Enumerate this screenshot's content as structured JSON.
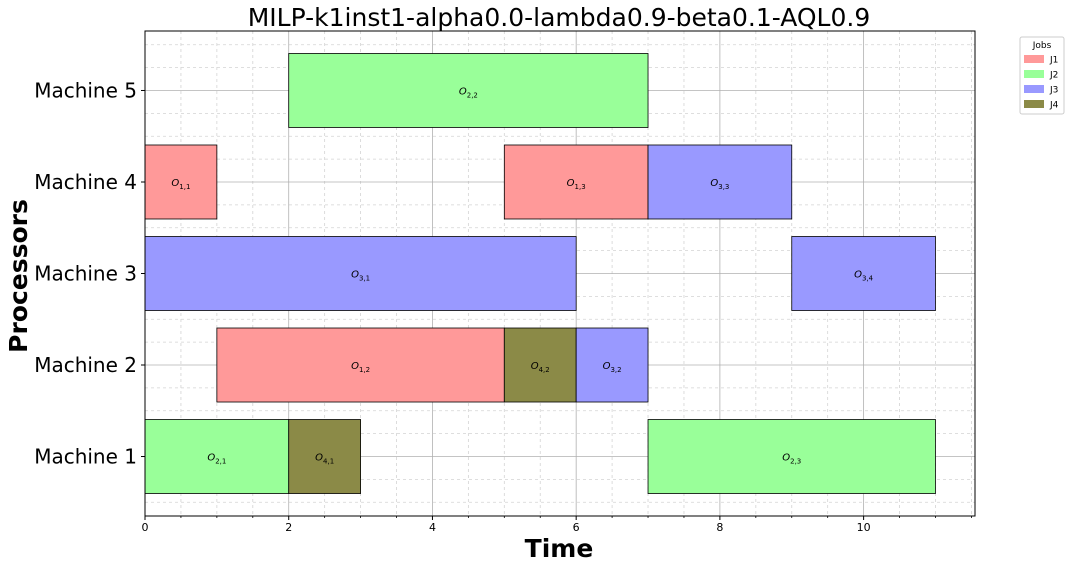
{
  "chart_data": {
    "type": "gantt",
    "title": "MILP-k1inst1-alpha0.0-lambda0.9-beta0.1-AQL0.9",
    "xlabel": "Time",
    "ylabel": "Processors",
    "xlim": [
      0,
      11.55
    ],
    "xticks": [
      "0",
      "2",
      "4",
      "6",
      "8",
      "10"
    ],
    "xtick_values": [
      0,
      2,
      4,
      6,
      8,
      10
    ],
    "machines": [
      "Machine 1",
      "Machine 2",
      "Machine 3",
      "Machine 4",
      "Machine 5"
    ],
    "grid": true,
    "legend": {
      "title": "Jobs",
      "placement": "outside-top-right",
      "entries": [
        {
          "name": "J1",
          "color": "#ff9999"
        },
        {
          "name": "J2",
          "color": "#99ff99"
        },
        {
          "name": "J3",
          "color": "#9999ff"
        },
        {
          "name": "J4",
          "color": "#8b8a47"
        }
      ]
    },
    "operations": [
      {
        "job": "J2",
        "machine": "Machine 1",
        "start": 0,
        "end": 2,
        "label": "O",
        "sub": "2,1"
      },
      {
        "job": "J4",
        "machine": "Machine 1",
        "start": 2,
        "end": 3,
        "label": "O",
        "sub": "4,1"
      },
      {
        "job": "J2",
        "machine": "Machine 1",
        "start": 7,
        "end": 11,
        "label": "O",
        "sub": "2,3"
      },
      {
        "job": "J1",
        "machine": "Machine 2",
        "start": 1,
        "end": 5,
        "label": "O",
        "sub": "1,2"
      },
      {
        "job": "J4",
        "machine": "Machine 2",
        "start": 5,
        "end": 6,
        "label": "O",
        "sub": "4,2"
      },
      {
        "job": "J3",
        "machine": "Machine 2",
        "start": 6,
        "end": 7,
        "label": "O",
        "sub": "3,2"
      },
      {
        "job": "J3",
        "machine": "Machine 3",
        "start": 0,
        "end": 6,
        "label": "O",
        "sub": "3,1"
      },
      {
        "job": "J3",
        "machine": "Machine 3",
        "start": 9,
        "end": 11,
        "label": "O",
        "sub": "3,4"
      },
      {
        "job": "J1",
        "machine": "Machine 4",
        "start": 0,
        "end": 1,
        "label": "O",
        "sub": "1,1"
      },
      {
        "job": "J1",
        "machine": "Machine 4",
        "start": 5,
        "end": 7,
        "label": "O",
        "sub": "1,3"
      },
      {
        "job": "J3",
        "machine": "Machine 4",
        "start": 7,
        "end": 9,
        "label": "O",
        "sub": "3,3"
      },
      {
        "job": "J2",
        "machine": "Machine 5",
        "start": 2,
        "end": 7,
        "label": "O",
        "sub": "2,2"
      }
    ]
  }
}
